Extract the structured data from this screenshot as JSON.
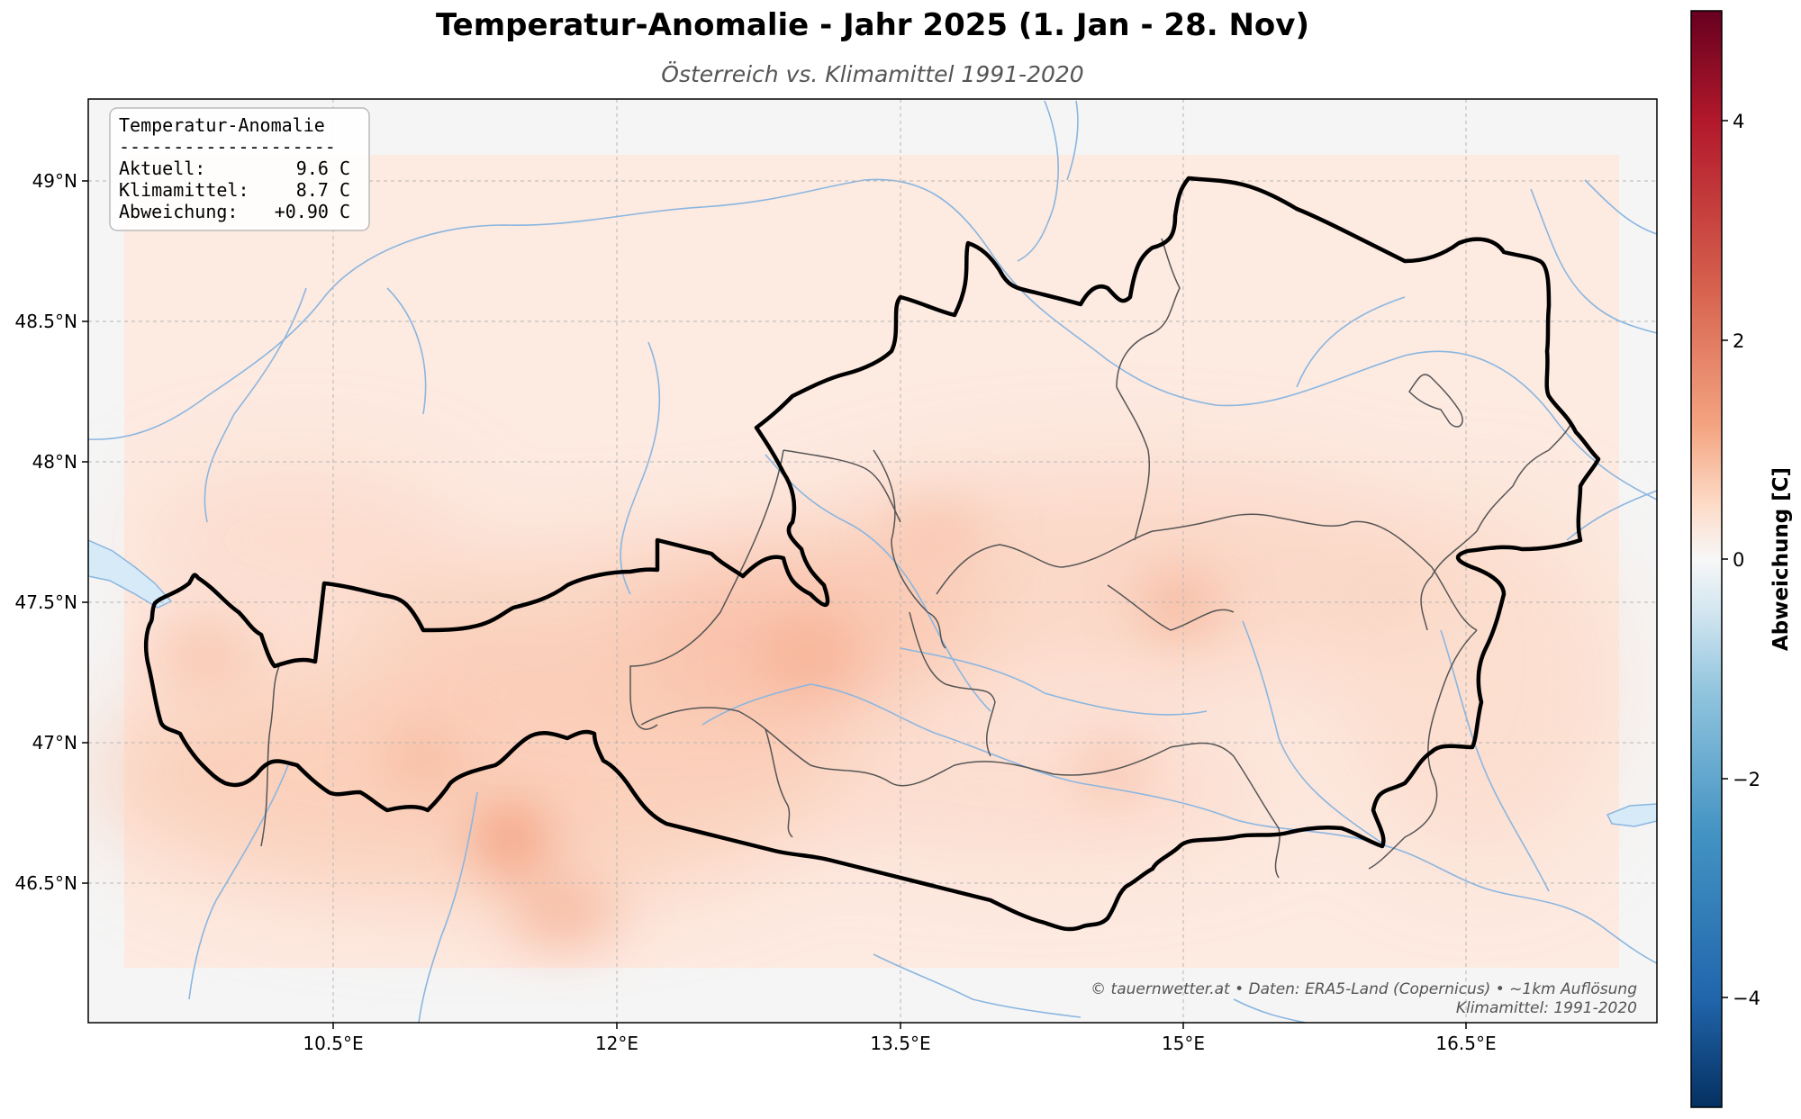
{
  "title": "Temperatur-Anomalie - Jahr 2025 (1. Jan - 28. Nov)",
  "subtitle": "Österreich vs. Klimamittel 1991-2020",
  "info_box": {
    "heading": "Temperatur-Anomalie",
    "separator": "--------------------",
    "rows": [
      {
        "label": "Aktuell:",
        "value": "9.6 C"
      },
      {
        "label": "Klimamittel:",
        "value": "8.7 C"
      },
      {
        "label": "Abweichung:",
        "value": "+0.90 C"
      }
    ]
  },
  "credit": {
    "line1": "© tauernwetter.at • Daten: ERA5-Land (Copernicus) • ~1km Auflösung",
    "line2": "Klimamittel: 1991-2020"
  },
  "axes": {
    "lon_ticks": [
      {
        "value": 10.5,
        "label": "10.5°E"
      },
      {
        "value": 12,
        "label": "12°E"
      },
      {
        "value": 13.5,
        "label": "13.5°E"
      },
      {
        "value": 15,
        "label": "15°E"
      },
      {
        "value": 16.5,
        "label": "16.5°E"
      }
    ],
    "lat_ticks": [
      {
        "value": 49,
        "label": "49°N"
      },
      {
        "value": 48.5,
        "label": "48.5°N"
      },
      {
        "value": 48,
        "label": "48°N"
      },
      {
        "value": 47.5,
        "label": "47.5°N"
      },
      {
        "value": 47,
        "label": "47°N"
      },
      {
        "value": 46.5,
        "label": "46.5°N"
      }
    ],
    "lon_range": [
      9.2,
      17.5
    ],
    "lat_range": [
      46.0,
      49.3
    ]
  },
  "colorbar": {
    "label": "Abweichung [C]",
    "range": [
      -5,
      5
    ],
    "ticks": [
      {
        "value": 4,
        "label": "4"
      },
      {
        "value": 2,
        "label": "2"
      },
      {
        "value": 0,
        "label": "0"
      },
      {
        "value": -2,
        "label": "−2"
      },
      {
        "value": -4,
        "label": "−4"
      }
    ],
    "colormap": "RdBu_r"
  },
  "colors": {
    "austria_border": "#000000",
    "state_border": "#555555",
    "rivers": "#8ab6e0",
    "water": "#d6eaf8",
    "field_base": "#fde8de",
    "field_warm": "#f4a582",
    "background": "#f5f5f5"
  }
}
